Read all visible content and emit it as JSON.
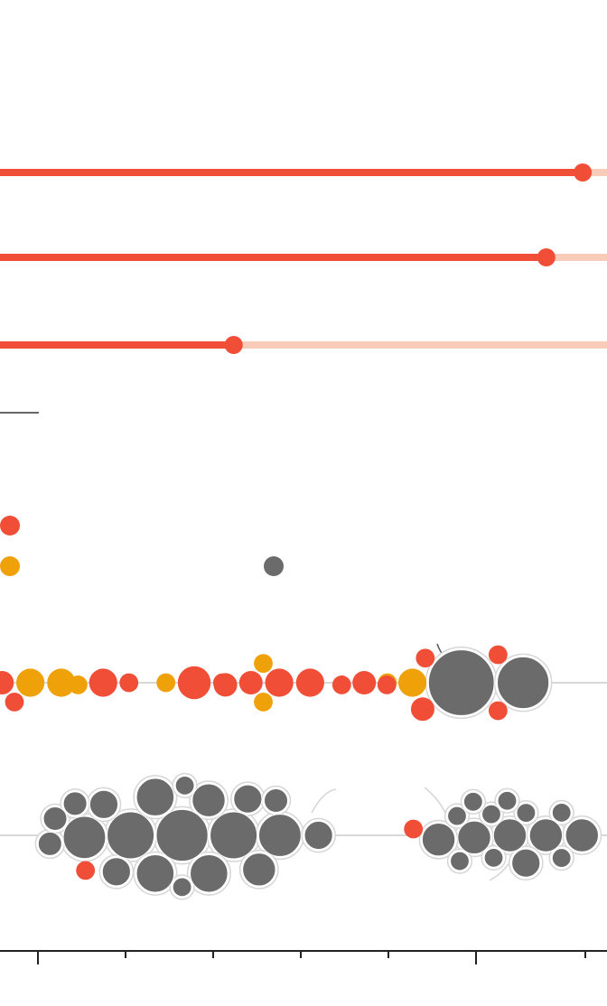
{
  "colors": {
    "red": "#f04e37",
    "red_light": "#f9cbb9",
    "orange": "#efa10a",
    "gray": "#6b6b6b",
    "halo": "#d6d6d6",
    "axis": "#222222",
    "baseline": "#cccccc"
  },
  "chart_data": [
    {
      "type": "bar",
      "orientation": "horizontal",
      "style": "progress-lollipop",
      "range": [
        0,
        1
      ],
      "values": [
        0.96,
        0.9,
        0.385
      ]
    },
    {
      "type": "scatter",
      "style": "beeswarm",
      "legend": {
        "entries": [
          {
            "color": "red"
          },
          {
            "color": "orange"
          },
          {
            "color": "gray"
          }
        ]
      },
      "x_ticks": 7,
      "rows": [
        {
          "groups": [
            {
              "x": 0.05,
              "points": [
                {
                  "c": "orange",
                  "s": 3
                },
                {
                  "c": "red",
                  "s": 2
                },
                {
                  "c": "red",
                  "s": 2.5
                },
                {
                  "c": "orange",
                  "s": 3
                }
              ]
            },
            {
              "x": 0.17,
              "points": [
                {
                  "c": "red",
                  "s": 2
                },
                {
                  "c": "orange",
                  "s": 2
                },
                {
                  "c": "red",
                  "s": 3
                }
              ]
            },
            {
              "x": 0.32,
              "points": [
                {
                  "c": "red",
                  "s": 2
                },
                {
                  "c": "orange",
                  "s": 2
                },
                {
                  "c": "red",
                  "s": 3.5
                }
              ]
            },
            {
              "x": 0.46,
              "points": [
                {
                  "c": "orange",
                  "s": 2
                },
                {
                  "c": "red",
                  "s": 2.5
                },
                {
                  "c": "orange",
                  "s": 2
                },
                {
                  "c": "red",
                  "s": 3
                },
                {
                  "c": "red",
                  "s": 3
                },
                {
                  "c": "red",
                  "s": 2.5
                }
              ]
            },
            {
              "x": 0.6,
              "points": [
                {
                  "c": "red",
                  "s": 2.5
                },
                {
                  "c": "orange",
                  "s": 2
                },
                {
                  "c": "red",
                  "s": 2
                }
              ]
            },
            {
              "x": 0.76,
              "points": [
                {
                  "c": "gray",
                  "s": 5.5
                },
                {
                  "c": "gray",
                  "s": 7
                },
                {
                  "c": "red",
                  "s": 2
                },
                {
                  "c": "red",
                  "s": 2
                },
                {
                  "c": "red",
                  "s": 2.5
                },
                {
                  "c": "orange",
                  "s": 3
                },
                {
                  "c": "red",
                  "s": 2
                },
                {
                  "c": "red",
                  "s": 2
                }
              ]
            }
          ]
        },
        {
          "groups": [
            {
              "x": 0.3,
              "points": [
                {
                  "c": "gray",
                  "s": 2.5
                },
                {
                  "c": "gray",
                  "s": 2.5
                },
                {
                  "c": "gray",
                  "s": 3.5
                },
                {
                  "c": "gray",
                  "s": 3
                },
                {
                  "c": "gray",
                  "s": 2.5
                },
                {
                  "c": "gray",
                  "s": 4
                },
                {
                  "c": "gray",
                  "s": 3
                },
                {
                  "c": "gray",
                  "s": 4.5
                },
                {
                  "c": "gray",
                  "s": 2
                },
                {
                  "c": "gray",
                  "s": 5
                },
                {
                  "c": "gray",
                  "s": 4.5
                },
                {
                  "c": "gray",
                  "s": 5.5
                },
                {
                  "c": "gray",
                  "s": 5
                },
                {
                  "c": "gray",
                  "s": 4
                },
                {
                  "c": "gray",
                  "s": 4
                },
                {
                  "c": "gray",
                  "s": 3
                },
                {
                  "c": "gray",
                  "s": 3.5
                },
                {
                  "c": "gray",
                  "s": 3
                },
                {
                  "c": "gray",
                  "s": 2.5
                },
                {
                  "c": "gray",
                  "s": 2
                },
                {
                  "c": "red",
                  "s": 2
                }
              ]
            },
            {
              "x": 0.84,
              "points": [
                {
                  "c": "gray",
                  "s": 2
                },
                {
                  "c": "gray",
                  "s": 2
                },
                {
                  "c": "gray",
                  "s": 2
                },
                {
                  "c": "gray",
                  "s": 2
                },
                {
                  "c": "gray",
                  "s": 2
                },
                {
                  "c": "gray",
                  "s": 2
                },
                {
                  "c": "gray",
                  "s": 3.5
                },
                {
                  "c": "gray",
                  "s": 3.5
                },
                {
                  "c": "gray",
                  "s": 3.5
                },
                {
                  "c": "gray",
                  "s": 3.5
                },
                {
                  "c": "gray",
                  "s": 3.5
                },
                {
                  "c": "gray",
                  "s": 3
                },
                {
                  "c": "gray",
                  "s": 2
                },
                {
                  "c": "gray",
                  "s": 2
                },
                {
                  "c": "gray",
                  "s": 2
                },
                {
                  "c": "red",
                  "s": 2
                }
              ]
            }
          ]
        }
      ]
    }
  ]
}
